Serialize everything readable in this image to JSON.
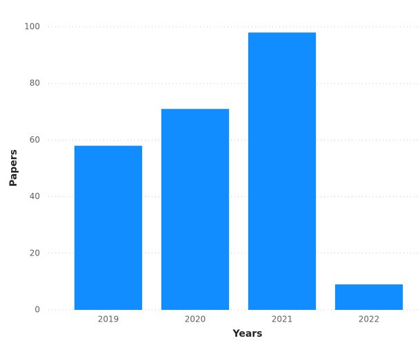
{
  "chart_data": {
    "type": "bar",
    "x_label": "Years",
    "y_label": "Papers",
    "categories": [
      "2019",
      "2020",
      "2021",
      "2022"
    ],
    "values": [
      58,
      71,
      98,
      9
    ],
    "color": "#118dff",
    "ylim": [
      0,
      100
    ],
    "yticks": [
      0,
      20,
      40,
      60,
      80,
      100
    ],
    "grid": true
  }
}
